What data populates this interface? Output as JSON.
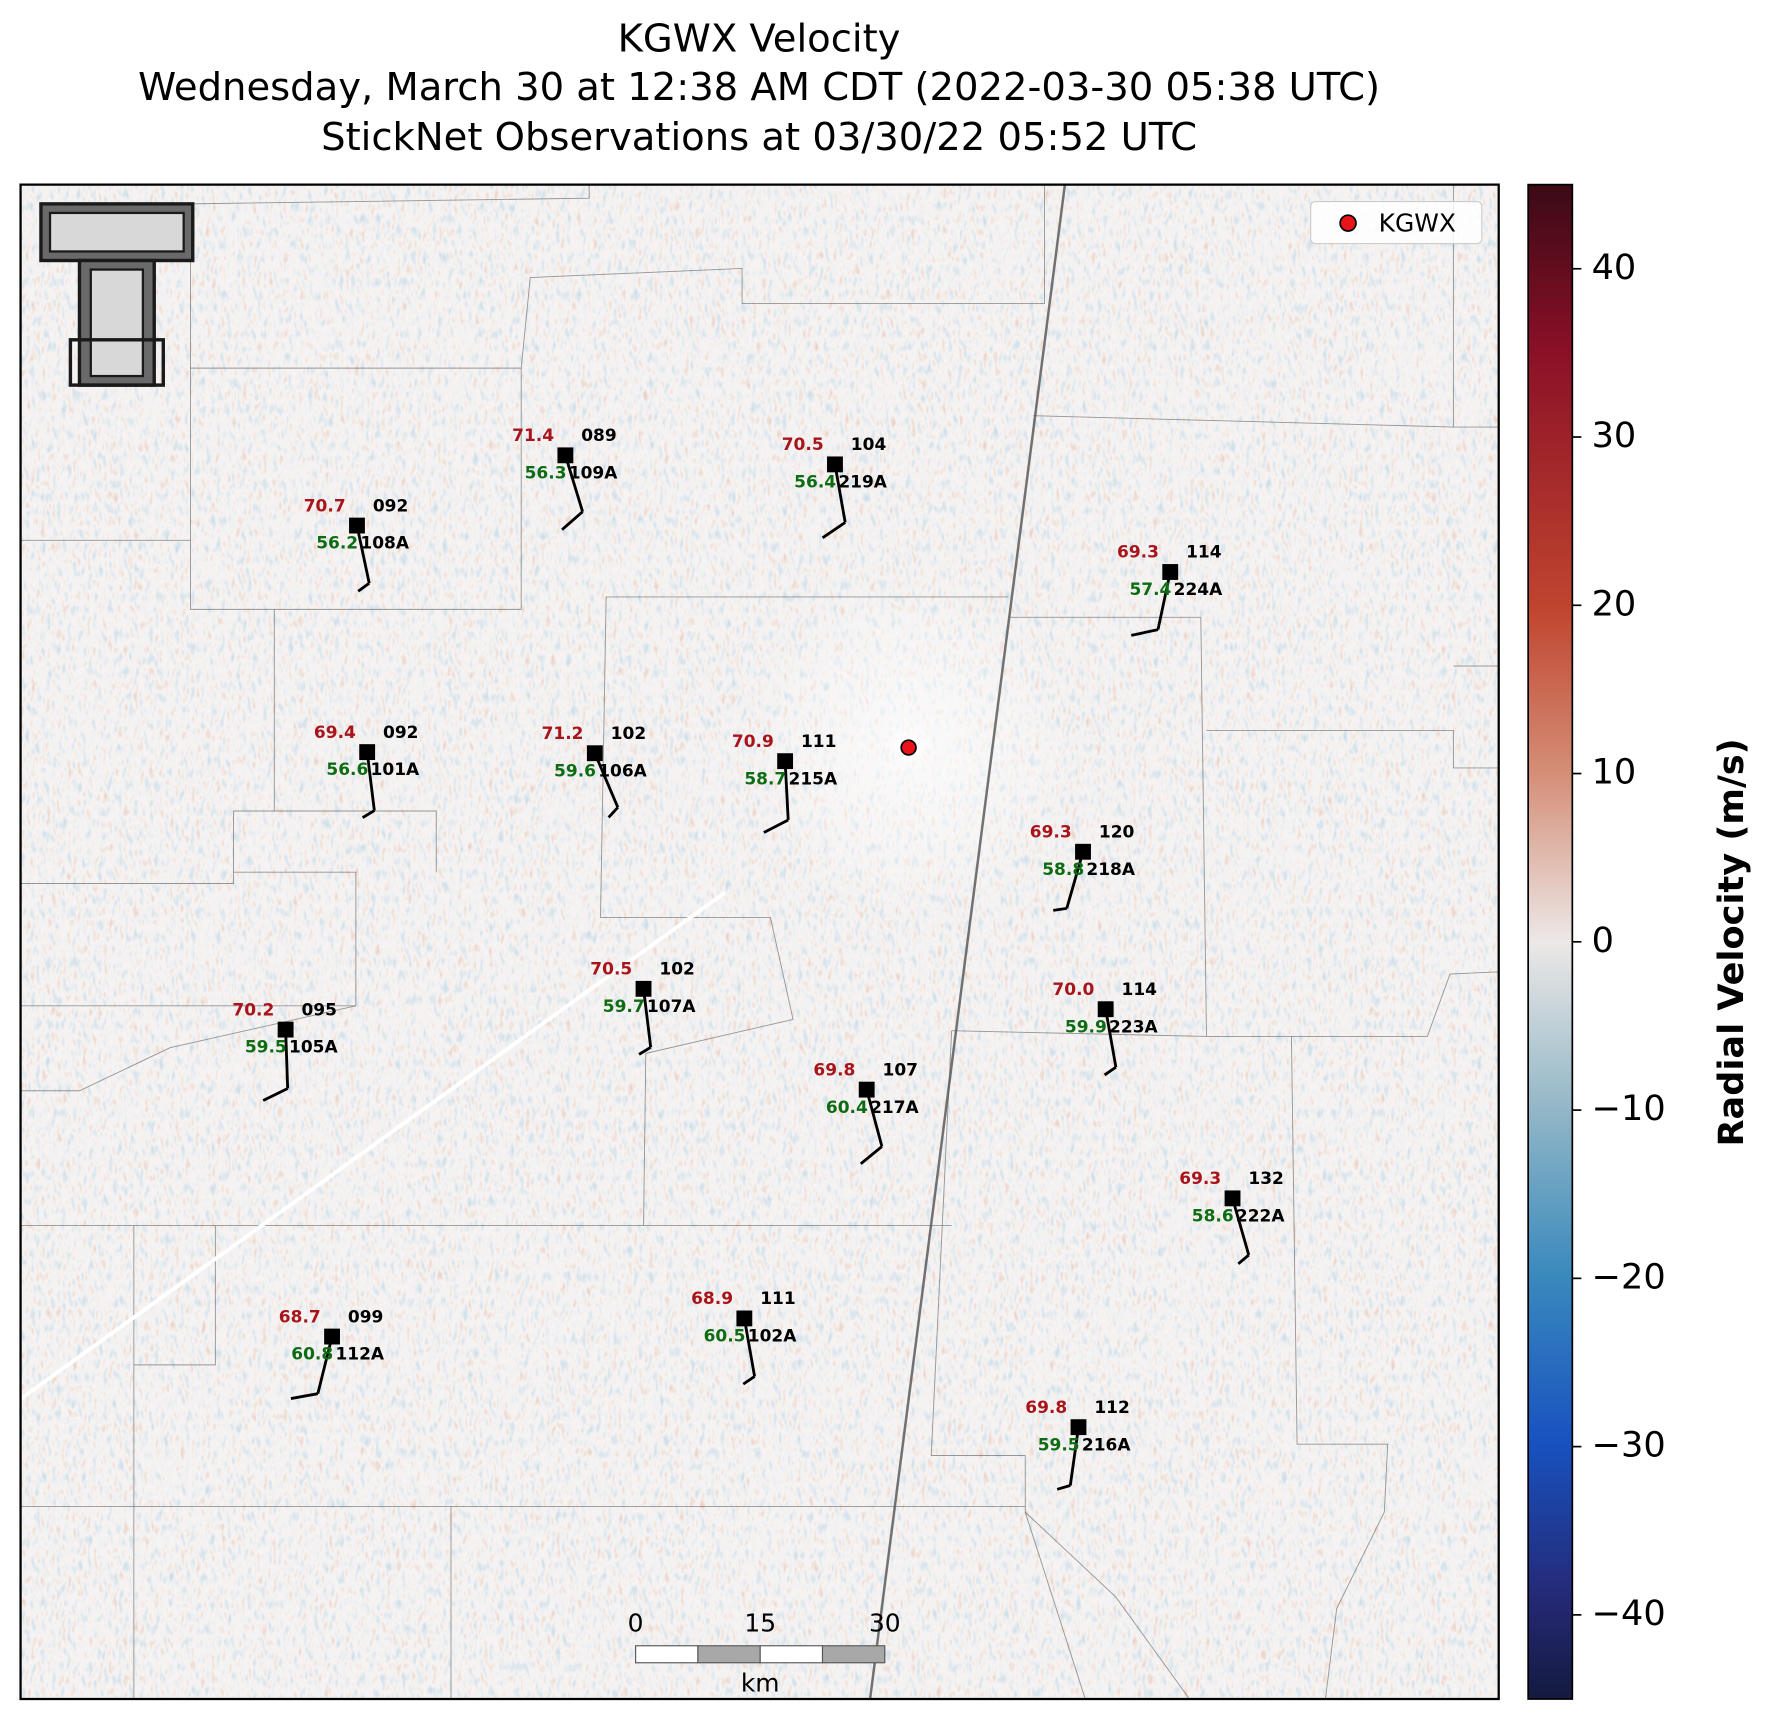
{
  "title": [
    "KGWX Velocity",
    "Wednesday, March 30 at 12:38 AM CDT (2022-03-30 05:38 UTC)",
    "StickNet Observations at 03/30/22 05:52 UTC"
  ],
  "legend": {
    "label": "KGWX"
  },
  "colorbar": {
    "label": "Radial Velocity (m/s)",
    "lim": [
      -45,
      45
    ],
    "ticks": [
      {
        "value": -40,
        "label": "−40"
      },
      {
        "value": -30,
        "label": "−30"
      },
      {
        "value": -20,
        "label": "−20"
      },
      {
        "value": -10,
        "label": "−10"
      },
      0,
      10,
      20,
      30,
      40
    ]
  },
  "scale_bar": {
    "ticks": [
      0,
      15,
      30
    ],
    "unit": "km"
  },
  "stations": [
    {
      "id": "108A",
      "temperature": "70.7",
      "dewpoint": "56.2",
      "pressure": "092",
      "wind_dir": 168,
      "wind_speed": 5
    },
    {
      "id": "109A",
      "temperature": "71.4",
      "dewpoint": "56.3",
      "pressure": "089",
      "wind_dir": 163,
      "wind_speed": 10
    },
    {
      "id": "219A",
      "temperature": "70.5",
      "dewpoint": "56.4",
      "pressure": "104",
      "wind_dir": 170,
      "wind_speed": 10
    },
    {
      "id": "224A",
      "temperature": "69.3",
      "dewpoint": "57.4",
      "pressure": "114",
      "wind_dir": 192,
      "wind_speed": 10
    },
    {
      "id": "101A",
      "temperature": "69.4",
      "dewpoint": "56.6",
      "pressure": "092",
      "wind_dir": 173,
      "wind_speed": 5
    },
    {
      "id": "106A",
      "temperature": "71.2",
      "dewpoint": "59.6",
      "pressure": "102",
      "wind_dir": 157,
      "wind_speed": 5
    },
    {
      "id": "215A",
      "temperature": "70.9",
      "dewpoint": "58.7",
      "pressure": "111",
      "wind_dir": 177,
      "wind_speed": 10
    },
    {
      "id": "218A",
      "temperature": "69.3",
      "dewpoint": "58.8",
      "pressure": "120",
      "wind_dir": 196,
      "wind_speed": 5
    },
    {
      "id": "105A",
      "temperature": "70.2",
      "dewpoint": "59.5",
      "pressure": "095",
      "wind_dir": 178,
      "wind_speed": 10
    },
    {
      "id": "107A",
      "temperature": "70.5",
      "dewpoint": "59.7",
      "pressure": "102",
      "wind_dir": 173,
      "wind_speed": 5
    },
    {
      "id": "223A",
      "temperature": "70.0",
      "dewpoint": "59.9",
      "pressure": "114",
      "wind_dir": 170,
      "wind_speed": 5
    },
    {
      "id": "217A",
      "temperature": "69.8",
      "dewpoint": "60.4",
      "pressure": "107",
      "wind_dir": 165,
      "wind_speed": 10
    },
    {
      "id": "222A",
      "temperature": "69.3",
      "dewpoint": "58.6",
      "pressure": "132",
      "wind_dir": 164,
      "wind_speed": 5
    },
    {
      "id": "112A",
      "temperature": "68.7",
      "dewpoint": "60.8",
      "pressure": "099",
      "wind_dir": 194,
      "wind_speed": 10
    },
    {
      "id": "102A",
      "temperature": "68.9",
      "dewpoint": "60.5",
      "pressure": "111",
      "wind_dir": 170,
      "wind_speed": 5
    },
    {
      "id": "216A",
      "temperature": "69.8",
      "dewpoint": "59.5",
      "pressure": "112",
      "wind_dir": 188,
      "wind_speed": 5
    }
  ]
}
